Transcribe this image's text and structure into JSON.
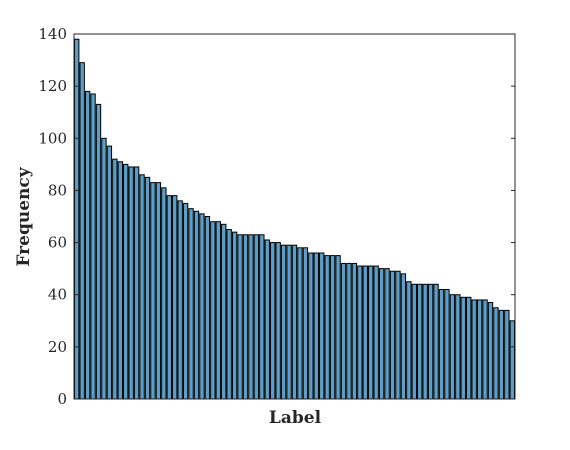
{
  "chart_data": {
    "type": "bar",
    "xlabel": "Label",
    "ylabel": "Frequency",
    "ylim": [
      0,
      140
    ],
    "yticks": [
      0,
      20,
      40,
      60,
      80,
      100,
      120,
      140
    ],
    "grid": false,
    "values": [
      138,
      129,
      118,
      117,
      113,
      100,
      97,
      92,
      91,
      90,
      89,
      89,
      86,
      85,
      83,
      83,
      81,
      78,
      78,
      76,
      75,
      73,
      72,
      71,
      70,
      68,
      68,
      67,
      65,
      64,
      63,
      63,
      63,
      63,
      63,
      61,
      60,
      60,
      59,
      59,
      59,
      58,
      58,
      56,
      56,
      56,
      55,
      55,
      55,
      52,
      52,
      52,
      51,
      51,
      51,
      51,
      50,
      50,
      49,
      49,
      48,
      45,
      44,
      44,
      44,
      44,
      44,
      42,
      42,
      40,
      40,
      39,
      39,
      38,
      38,
      38,
      37,
      35,
      34,
      34,
      30
    ]
  },
  "colors": {
    "bar": "#5d9ec7",
    "axis": "#262626"
  }
}
